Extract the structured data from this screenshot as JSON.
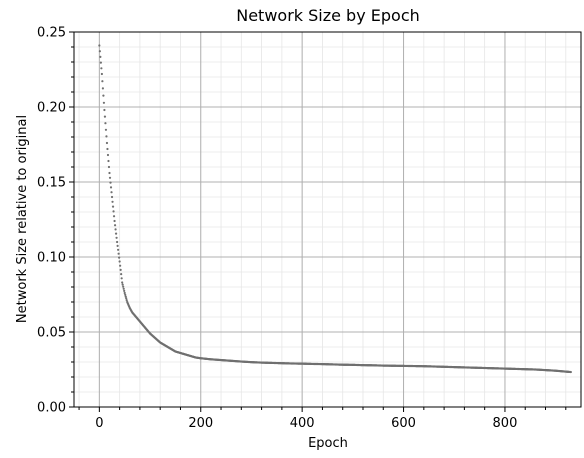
{
  "chart_data": {
    "type": "scatter",
    "title": "Network Size by Epoch",
    "xlabel": "Epoch",
    "ylabel": "Network Size relative to original",
    "xlim": [
      -50,
      950
    ],
    "ylim": [
      0.0,
      0.25
    ],
    "x_ticks": [
      0,
      200,
      400,
      600,
      800
    ],
    "x_tick_labels": [
      "0",
      "200",
      "400",
      "600",
      "800"
    ],
    "y_ticks": [
      0.0,
      0.05,
      0.1,
      0.15,
      0.2,
      0.25
    ],
    "y_tick_labels": [
      "0.00",
      "0.05",
      "0.10",
      "0.15",
      "0.20",
      "0.25"
    ],
    "grid": "major and minor",
    "legend": "none",
    "marker_color": "#707070",
    "grid_color": "#b0b0b0",
    "minor_grid_color": "#e6e6e6",
    "series": [
      {
        "x": [
          0,
          5,
          10,
          15,
          20,
          25,
          30,
          35,
          40,
          45,
          50,
          55,
          60,
          65,
          70,
          75,
          80,
          90,
          100,
          110,
          120,
          130,
          140,
          150,
          160,
          170,
          180,
          190,
          200,
          220,
          240,
          260,
          280,
          300,
          320,
          340,
          360,
          380,
          400,
          420,
          440,
          460,
          480,
          500,
          520,
          540,
          560,
          580,
          600,
          620,
          640,
          660,
          680,
          700,
          720,
          740,
          760,
          780,
          800,
          820,
          840,
          860,
          880,
          900,
          920,
          930
        ],
        "y": [
          0.241,
          0.222,
          0.198,
          0.176,
          0.156,
          0.14,
          0.124,
          0.11,
          0.097,
          0.083,
          0.076,
          0.07,
          0.066,
          0.063,
          0.061,
          0.059,
          0.057,
          0.053,
          0.049,
          0.046,
          0.043,
          0.041,
          0.039,
          0.037,
          0.036,
          0.035,
          0.034,
          0.033,
          0.0325,
          0.0318,
          0.0313,
          0.0308,
          0.0303,
          0.0299,
          0.0296,
          0.0294,
          0.0292,
          0.029,
          0.0289,
          0.0287,
          0.0286,
          0.0284,
          0.0282,
          0.0281,
          0.0279,
          0.0278,
          0.0276,
          0.0275,
          0.0274,
          0.0273,
          0.0272,
          0.027,
          0.0268,
          0.0266,
          0.0264,
          0.0262,
          0.026,
          0.0258,
          0.0256,
          0.0254,
          0.0252,
          0.025,
          0.0246,
          0.0242,
          0.0236,
          0.0233
        ]
      }
    ]
  }
}
